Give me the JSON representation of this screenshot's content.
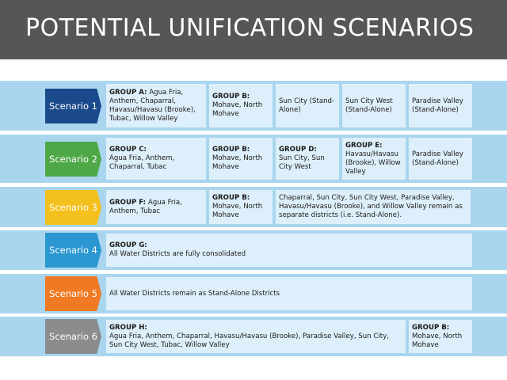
{
  "title": "POTENTIAL UNIFICATION SCENARIOS",
  "colors": {
    "header_bg": "#555657",
    "row_bg": "#a9d6ee",
    "cell_bg": "#ddeffa",
    "scenario_1": "#1b4a8c",
    "scenario_2": "#4fa848",
    "scenario_3": "#f4c01d",
    "scenario_4": "#2a97d1",
    "scenario_5": "#ef7a23",
    "scenario_6": "#8a8c8e"
  },
  "scenarios": [
    {
      "label": "Scenario 1",
      "cells": [
        {
          "heading": "GROUP A:",
          "text": " Agua Fria, Anthem, Chaparral, Havasu/Havasu (Brooke), Tubac, Willow Valley"
        },
        {
          "heading": "GROUP B:",
          "text": "Mohave, North Mohave"
        },
        {
          "heading": "",
          "text": "Sun City (Stand-Alone)"
        },
        {
          "heading": "",
          "text": "Sun City West (Stand-Alone)"
        },
        {
          "heading": "",
          "text": "Paradise Valley (Stand-Alone)"
        }
      ]
    },
    {
      "label": "Scenario 2",
      "cells": [
        {
          "heading": "GROUP C:",
          "text": "Agua Fria, Anthem, Chaparral, Tubac"
        },
        {
          "heading": "GROUP B:",
          "text": "Mohave, North Mohave"
        },
        {
          "heading": "GROUP D:",
          "text": "Sun City, Sun City West"
        },
        {
          "heading": "GROUP E:",
          "text": "Havasu/Havasu (Brooke), Willow Valley"
        },
        {
          "heading": "",
          "text": "Paradise Valley (Stand-Alone)"
        }
      ]
    },
    {
      "label": "Scenario 3",
      "cells": [
        {
          "heading": "GROUP F:",
          "text": " Agua Fria, Anthem, Tubac"
        },
        {
          "heading": "GROUP B:",
          "text": "Mohave, North Mohave"
        },
        {
          "heading": "",
          "text": "Chaparral, Sun City, Sun City West, Paradise Valley, Havasu/Havasu (Brooke), and Willow Valley remain as separate districts (i.e. Stand-Alone)."
        }
      ]
    },
    {
      "label": "Scenario 4",
      "cells": [
        {
          "heading": "GROUP G:",
          "text": "All Water Districts are fully consolidated"
        }
      ]
    },
    {
      "label": "Scenario 5",
      "cells": [
        {
          "heading": "",
          "text": "All Water Districts remain as Stand-Alone Districts"
        }
      ]
    },
    {
      "label": "Scenario 6",
      "cells": [
        {
          "heading": "GROUP H:",
          "text": "Agua Fria, Anthem, Chaparral, Havasu/Havasu (Brooke), Paradise Valley, Sun City, Sun City West, Tubac, Willow Valley"
        },
        {
          "heading": "GROUP B:",
          "text": "Mohave, North Mohave"
        }
      ]
    }
  ]
}
